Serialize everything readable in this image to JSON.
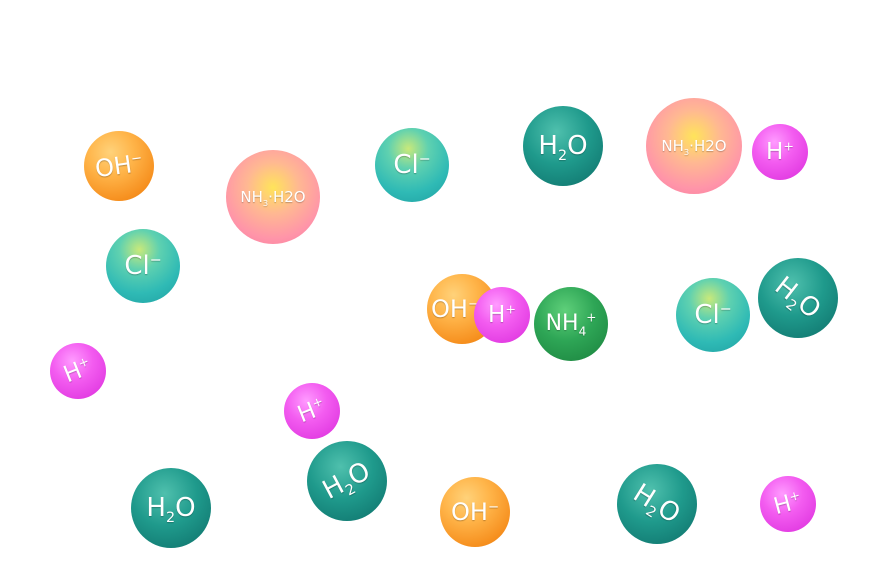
{
  "particles": [
    {
      "species": "OH-",
      "label": "OH",
      "sup": "−",
      "color": "#f68f1e"
    },
    {
      "species": "NH3·H2O",
      "label": "NH",
      "sub": "3",
      "tail": "·H2O",
      "color": "#ff94a9"
    },
    {
      "species": "Cl-",
      "label": "Cl",
      "sup": "−",
      "color": "#2fbab5"
    },
    {
      "species": "H2O",
      "label": "H",
      "sub": "2",
      "tail": "O",
      "color": "#1f9a8c"
    },
    {
      "species": "NH3·H2O",
      "label": "NH",
      "sub": "3",
      "tail": "·H2O",
      "color": "#ff94a9"
    },
    {
      "species": "H+",
      "label": "H",
      "sup": "+",
      "color": "#e23ce2"
    },
    {
      "species": "Cl-",
      "label": "Cl",
      "sup": "−",
      "color": "#2fbab5"
    },
    {
      "species": "OH-",
      "label": "OH",
      "sup": "−",
      "color": "#f68f1e"
    },
    {
      "species": "H+",
      "label": "H",
      "sup": "+",
      "color": "#e23ce2"
    },
    {
      "species": "NH4+",
      "label": "NH",
      "sub": "4",
      "sup": "+",
      "color": "#2ea656"
    },
    {
      "species": "Cl-",
      "label": "Cl",
      "sup": "−",
      "color": "#2fbab5"
    },
    {
      "species": "H2O",
      "label": "H",
      "sub": "2",
      "tail": "O",
      "color": "#1f9a8c"
    },
    {
      "species": "H+",
      "label": "H",
      "sup": "+",
      "color": "#e23ce2"
    },
    {
      "species": "H+",
      "label": "H",
      "sup": "+",
      "color": "#e23ce2"
    },
    {
      "species": "H2O",
      "label": "H",
      "sub": "2",
      "tail": "O",
      "color": "#1f9a8c"
    },
    {
      "species": "H2O",
      "label": "H",
      "sub": "2",
      "tail": "O",
      "color": "#1f9a8c"
    },
    {
      "species": "OH-",
      "label": "OH",
      "sup": "−",
      "color": "#f68f1e"
    },
    {
      "species": "H2O",
      "label": "H",
      "sub": "2",
      "tail": "O",
      "color": "#1f9a8c"
    },
    {
      "species": "H+",
      "label": "H",
      "sup": "+",
      "color": "#e23ce2"
    }
  ]
}
